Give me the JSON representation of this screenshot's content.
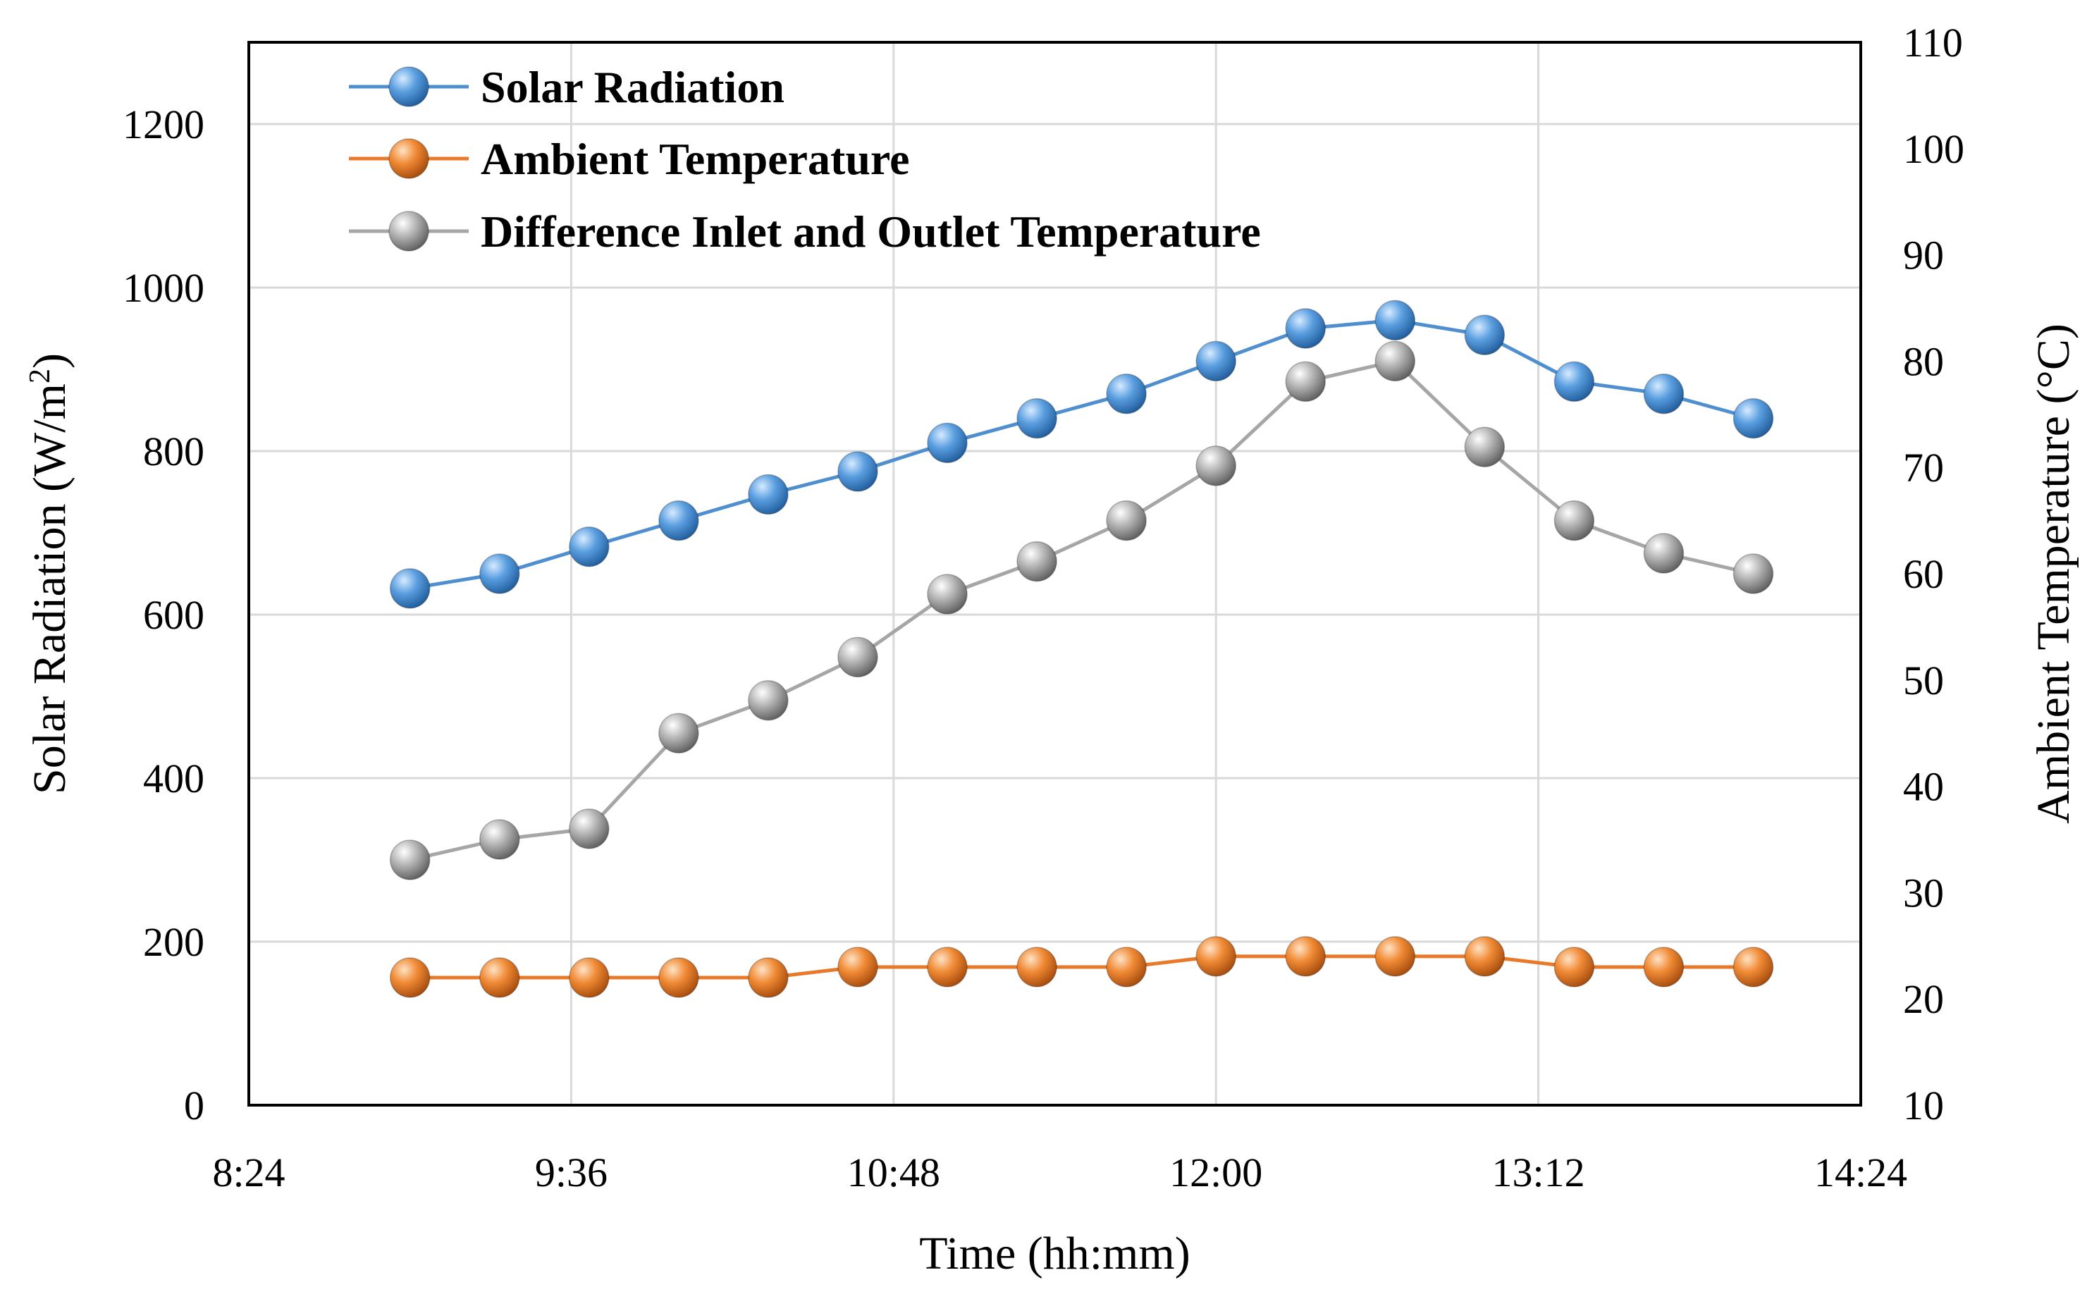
{
  "chart_data": {
    "type": "line",
    "xlabel": "Time (hh:mm)",
    "ylabel_left": {
      "prefix": "Solar Radiation (W/m",
      "sup": "2",
      "suffix": ")"
    },
    "ylabel_right": "Ambient Temperature (°C)",
    "x_ticks": [
      "8:24",
      "9:36",
      "10:48",
      "12:00",
      "13:12",
      "14:24"
    ],
    "x_range": [
      "8:24",
      "14:24"
    ],
    "y_left_range": [
      0,
      1300
    ],
    "y_left_ticks": [
      0,
      200,
      400,
      600,
      800,
      1000,
      1200
    ],
    "y_right_range": [
      10,
      110
    ],
    "y_right_ticks": [
      10,
      20,
      30,
      40,
      50,
      60,
      70,
      80,
      90,
      100,
      110
    ],
    "grid": true,
    "legend_position": "top-left",
    "x": [
      "9:00",
      "9:20",
      "9:40",
      "10:00",
      "10:20",
      "10:40",
      "11:00",
      "11:20",
      "11:40",
      "12:00",
      "12:20",
      "12:40",
      "13:00",
      "13:20",
      "13:40",
      "14:00"
    ],
    "series": [
      {
        "name": "Solar Radiation",
        "axis": "left",
        "color": "#4f8fcf",
        "values": [
          632,
          650,
          683,
          715,
          747,
          775,
          810,
          840,
          870,
          910,
          950,
          960,
          942,
          885,
          870,
          840
        ]
      },
      {
        "name": "Ambient Temperature",
        "axis": "right",
        "color": "#e8792b",
        "values": [
          22,
          22,
          22,
          22,
          22,
          23,
          23,
          23,
          23,
          24,
          24,
          24,
          24,
          23,
          23,
          23
        ]
      },
      {
        "name": "Difference Inlet and Outlet Temperature",
        "axis": "left",
        "color": "#a6a6a6",
        "values": [
          300,
          325,
          338,
          455,
          495,
          548,
          625,
          665,
          715,
          782,
          885,
          910,
          805,
          715,
          675,
          650
        ]
      }
    ]
  }
}
